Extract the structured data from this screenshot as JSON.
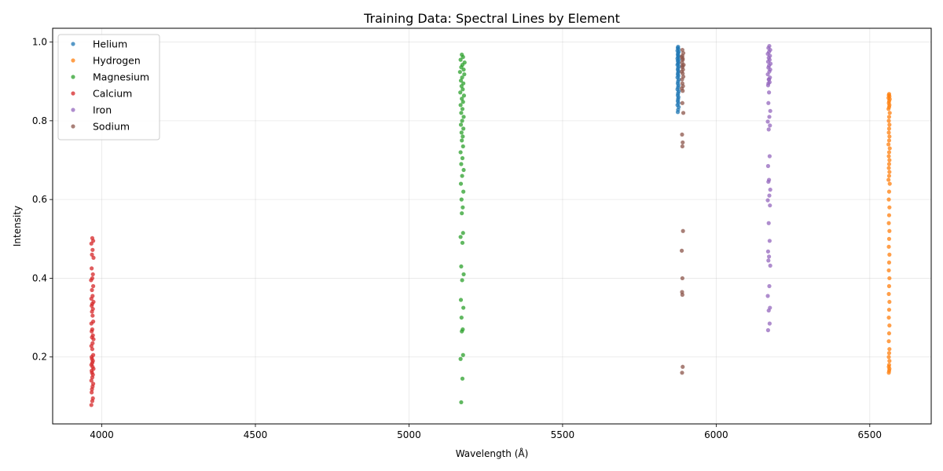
{
  "chart_data": {
    "type": "scatter",
    "title": "Training Data: Spectral Lines by Element",
    "xlabel": "Wavelength (Å)",
    "ylabel": "Intensity",
    "xlim": [
      3840,
      6700
    ],
    "ylim": [
      0.03,
      1.035
    ],
    "xticks": [
      4000,
      4500,
      5000,
      5500,
      6000,
      6500
    ],
    "yticks": [
      0.2,
      0.4,
      0.6,
      0.8,
      1.0
    ],
    "ytick_labels": [
      "0.2",
      "0.4",
      "0.6",
      "0.8",
      "1.0"
    ],
    "grid": true,
    "legend_position": "top-left",
    "series": [
      {
        "name": "Helium",
        "color": "#1f77b4",
        "x": [
          5876,
          5875,
          5877,
          5874,
          5878,
          5876,
          5875,
          5877,
          5876,
          5874,
          5878,
          5875,
          5877,
          5876,
          5874,
          5878,
          5876,
          5875,
          5877,
          5876,
          5875,
          5877,
          5874,
          5878,
          5876,
          5875,
          5877,
          5876,
          5874,
          5878,
          5876,
          5875,
          5877,
          5876,
          5875,
          5877,
          5874,
          5878,
          5876,
          5875
        ],
        "y": [
          0.988,
          0.985,
          0.982,
          0.978,
          0.975,
          0.972,
          0.968,
          0.965,
          0.962,
          0.958,
          0.955,
          0.952,
          0.948,
          0.945,
          0.942,
          0.938,
          0.934,
          0.93,
          0.926,
          0.922,
          0.918,
          0.914,
          0.91,
          0.905,
          0.9,
          0.895,
          0.89,
          0.885,
          0.88,
          0.875,
          0.87,
          0.865,
          0.86,
          0.855,
          0.85,
          0.845,
          0.84,
          0.835,
          0.828,
          0.822
        ]
      },
      {
        "name": "Hydrogen",
        "color": "#ff7f0e",
        "x": [
          6563,
          6562,
          6564,
          6561,
          6565,
          6563,
          6562,
          6564,
          6563,
          6561,
          6565,
          6563,
          6562,
          6564,
          6563,
          6562,
          6564,
          6563,
          6561,
          6565,
          6563,
          6562,
          6564,
          6563,
          6562,
          6564,
          6563,
          6561,
          6565,
          6563,
          6562,
          6564,
          6563,
          6562,
          6564,
          6563,
          6562,
          6564,
          6563,
          6562,
          6564,
          6563,
          6562,
          6564,
          6563,
          6562,
          6564,
          6563,
          6562,
          6564,
          6563,
          6562,
          6564,
          6563,
          6562,
          6564,
          6563,
          6562
        ],
        "y": [
          0.868,
          0.865,
          0.862,
          0.858,
          0.855,
          0.85,
          0.845,
          0.84,
          0.835,
          0.83,
          0.82,
          0.81,
          0.8,
          0.79,
          0.78,
          0.77,
          0.76,
          0.75,
          0.74,
          0.73,
          0.72,
          0.71,
          0.7,
          0.69,
          0.68,
          0.67,
          0.66,
          0.65,
          0.64,
          0.62,
          0.6,
          0.58,
          0.56,
          0.54,
          0.52,
          0.5,
          0.48,
          0.46,
          0.44,
          0.42,
          0.4,
          0.38,
          0.36,
          0.34,
          0.32,
          0.3,
          0.28,
          0.26,
          0.24,
          0.22,
          0.21,
          0.2,
          0.19,
          0.18,
          0.175,
          0.17,
          0.165,
          0.16
        ]
      },
      {
        "name": "Magnesium",
        "color": "#2ca02c",
        "x": [
          5172,
          5176,
          5168,
          5181,
          5174,
          5170,
          5178,
          5166,
          5180,
          5173,
          5169,
          5177,
          5171,
          5175,
          5167,
          5179,
          5172,
          5176,
          5168,
          5174,
          5170,
          5178,
          5173,
          5169,
          5177,
          5171,
          5175,
          5172,
          5176,
          5168,
          5174,
          5170,
          5178,
          5173,
          5169,
          5177,
          5171,
          5175,
          5172,
          5176,
          5168,
          5174,
          5170,
          5178,
          5173,
          5169,
          5177,
          5171,
          5175,
          5172,
          5176,
          5168,
          5174,
          5170
        ],
        "y": [
          0.968,
          0.962,
          0.955,
          0.948,
          0.942,
          0.936,
          0.93,
          0.924,
          0.918,
          0.91,
          0.902,
          0.895,
          0.888,
          0.88,
          0.872,
          0.864,
          0.856,
          0.848,
          0.84,
          0.83,
          0.82,
          0.81,
          0.8,
          0.79,
          0.78,
          0.77,
          0.76,
          0.75,
          0.735,
          0.72,
          0.705,
          0.69,
          0.675,
          0.66,
          0.64,
          0.62,
          0.6,
          0.58,
          0.565,
          0.515,
          0.505,
          0.49,
          0.43,
          0.41,
          0.395,
          0.345,
          0.325,
          0.3,
          0.27,
          0.265,
          0.205,
          0.195,
          0.145,
          0.085
        ]
      },
      {
        "name": "Calcium",
        "color": "#d62728",
        "x": [
          3969,
          3972,
          3966,
          3970,
          3968,
          3973,
          3967,
          3971,
          3969,
          3965,
          3972,
          3968,
          3970,
          3966,
          3973,
          3969,
          3967,
          3971,
          3968,
          3970,
          3972,
          3966,
          3969,
          3967,
          3971,
          3968,
          3973,
          3970,
          3966,
          3969,
          3972,
          3967,
          3968,
          3971,
          3969,
          3966,
          3970,
          3973,
          3967,
          3968,
          3971,
          3969,
          3966,
          3972,
          3970,
          3968,
          3967,
          3971,
          3969,
          3966
        ],
        "y": [
          0.502,
          0.495,
          0.488,
          0.472,
          0.46,
          0.452,
          0.425,
          0.41,
          0.4,
          0.395,
          0.38,
          0.37,
          0.355,
          0.348,
          0.34,
          0.335,
          0.33,
          0.322,
          0.315,
          0.305,
          0.29,
          0.285,
          0.27,
          0.265,
          0.255,
          0.25,
          0.245,
          0.235,
          0.228,
          0.22,
          0.205,
          0.2,
          0.195,
          0.19,
          0.185,
          0.18,
          0.175,
          0.17,
          0.165,
          0.16,
          0.155,
          0.148,
          0.14,
          0.132,
          0.125,
          0.118,
          0.11,
          0.095,
          0.088,
          0.078
        ]
      },
      {
        "name": "Iron",
        "color": "#9467bd",
        "x": [
          6173,
          6170,
          6176,
          6172,
          6168,
          6175,
          6171,
          6174,
          6169,
          6177,
          6172,
          6170,
          6176,
          6173,
          6168,
          6175,
          6171,
          6174,
          6169,
          6172,
          6170,
          6176,
          6173,
          6168,
          6175,
          6171,
          6174,
          6169,
          6172,
          6170,
          6176,
          6173,
          6168,
          6175,
          6171,
          6174,
          6169,
          6172,
          6170,
          6176,
          6173,
          6168,
          6175,
          6171,
          6174,
          6169,
          6172,
          6170
        ],
        "y": [
          0.99,
          0.985,
          0.98,
          0.975,
          0.97,
          0.965,
          0.96,
          0.955,
          0.95,
          0.945,
          0.94,
          0.935,
          0.93,
          0.925,
          0.918,
          0.91,
          0.905,
          0.898,
          0.89,
          0.872,
          0.845,
          0.825,
          0.81,
          0.798,
          0.788,
          0.778,
          0.71,
          0.685,
          0.65,
          0.645,
          0.625,
          0.61,
          0.598,
          0.585,
          0.54,
          0.495,
          0.468,
          0.455,
          0.445,
          0.432,
          0.38,
          0.355,
          0.325,
          0.318,
          0.285,
          0.268,
          0.905,
          0.895
        ]
      },
      {
        "name": "Sodium",
        "color": "#8c564b",
        "x": [
          5890,
          5893,
          5888,
          5891,
          5889,
          5894,
          5890,
          5892,
          5888,
          5891,
          5893,
          5889,
          5890,
          5892,
          5888,
          5891,
          5890,
          5893,
          5889,
          5891,
          5890,
          5892,
          5888,
          5890,
          5889,
          5890,
          5891,
          5889,
          5890,
          5891,
          5890
        ],
        "y": [
          0.98,
          0.972,
          0.962,
          0.955,
          0.948,
          0.942,
          0.936,
          0.93,
          0.925,
          0.92,
          0.912,
          0.905,
          0.895,
          0.888,
          0.882,
          0.876,
          0.845,
          0.82,
          0.765,
          0.745,
          0.735,
          0.52,
          0.47,
          0.4,
          0.365,
          0.358,
          0.175,
          0.16,
          0.965,
          0.958,
          0.94
        ]
      }
    ]
  }
}
